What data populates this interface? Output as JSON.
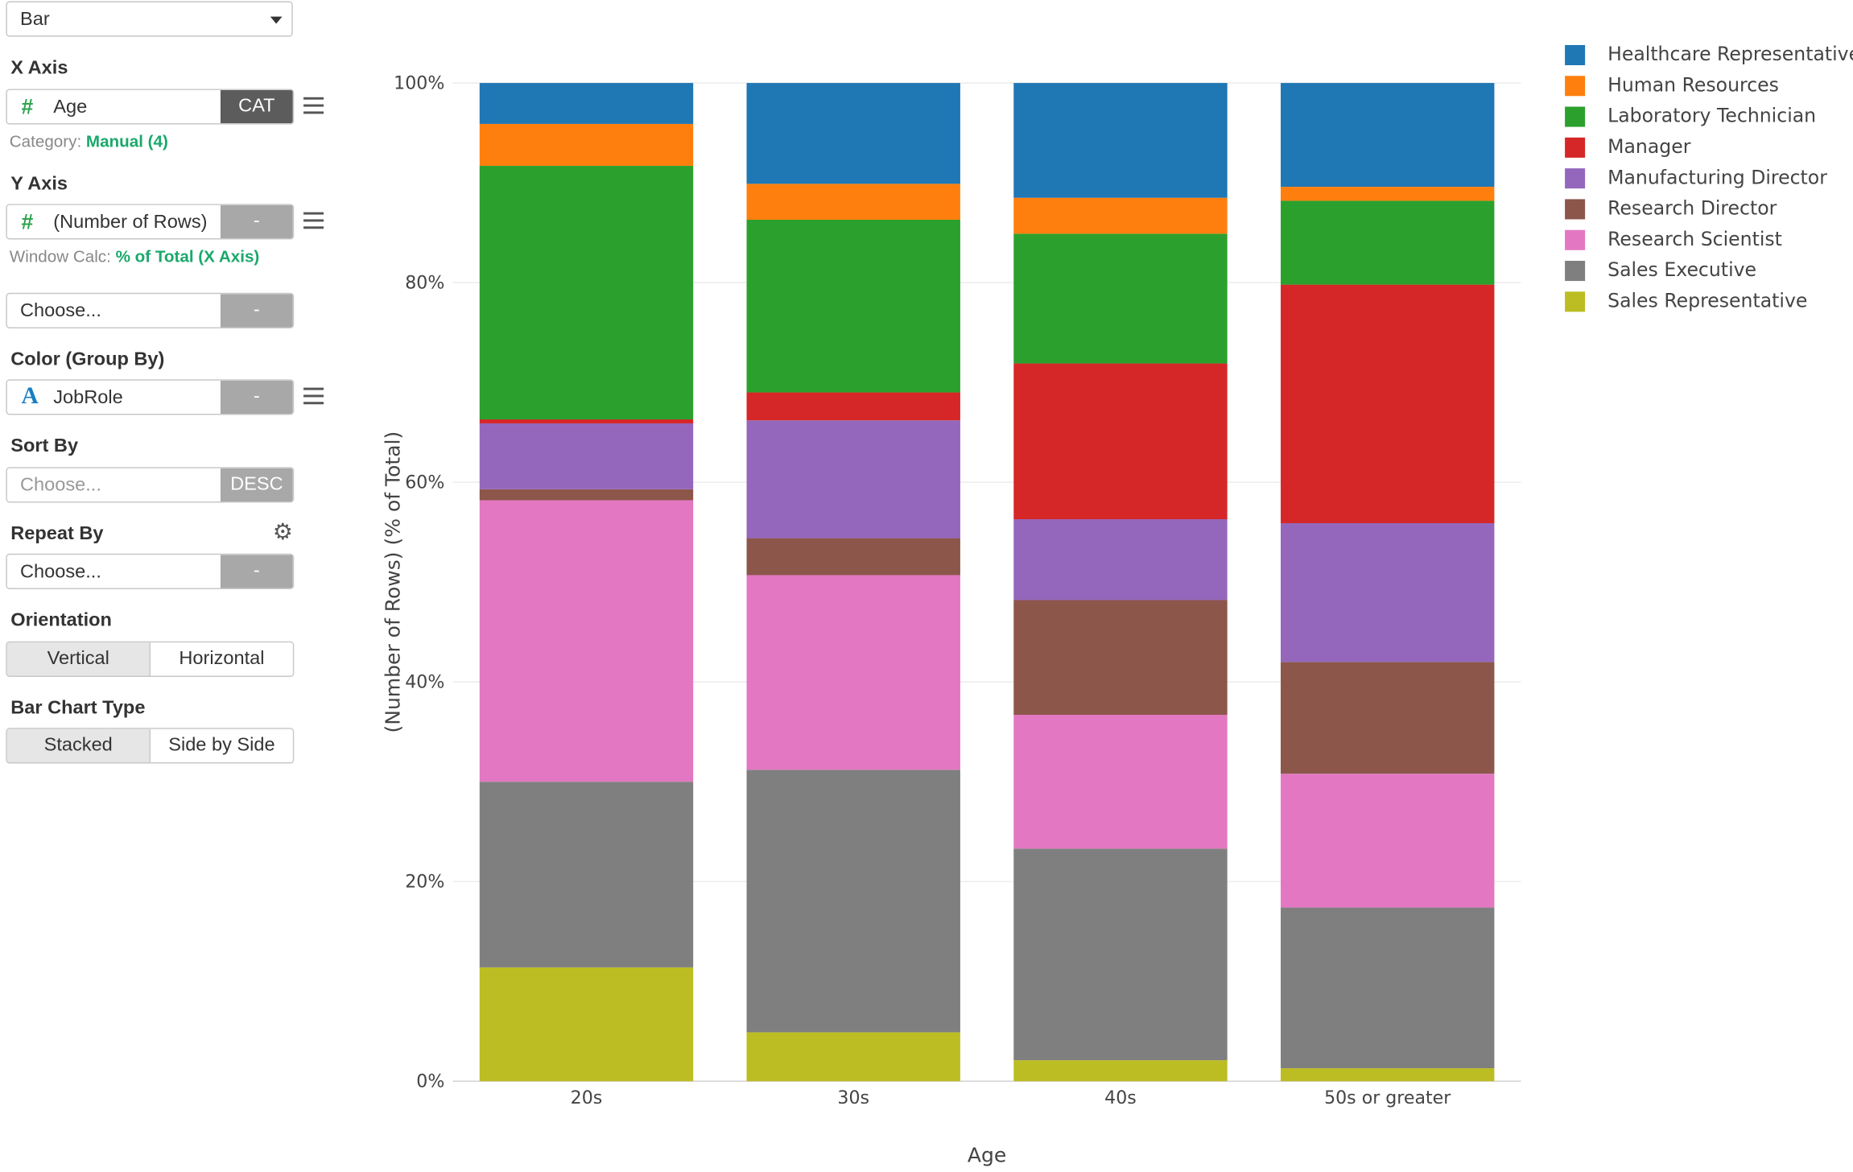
{
  "chart_type_select": {
    "value": "Bar"
  },
  "x_axis": {
    "title": "X Axis",
    "field": "Age",
    "button": "CAT",
    "note_label": "Category:",
    "note_value": "Manual (4)"
  },
  "y_axis": {
    "title": "Y Axis",
    "field": "(Number of Rows)",
    "button": "-",
    "note_label": "Window Calc:",
    "note_value": "% of Total (X Axis)"
  },
  "extra_field": {
    "placeholder": "Choose...",
    "button": "-"
  },
  "color": {
    "title": "Color (Group By)",
    "field": "JobRole",
    "button": "-"
  },
  "sort": {
    "title": "Sort By",
    "placeholder": "Choose...",
    "button": "DESC"
  },
  "repeat": {
    "title": "Repeat By",
    "placeholder": "Choose...",
    "button": "-"
  },
  "orientation": {
    "title": "Orientation",
    "options": [
      "Vertical",
      "Horizontal"
    ],
    "selected": "Vertical"
  },
  "bar_type": {
    "title": "Bar Chart Type",
    "options": [
      "Stacked",
      "Side by Side"
    ],
    "selected": "Stacked"
  },
  "icons": {
    "number_type": "hash-icon",
    "string_type": "letter-a-icon",
    "menu": "hamburger-menu-icon",
    "settings": "gear-icon",
    "dropdown": "caret-down-icon"
  },
  "chart_data": {
    "type": "bar",
    "stacked": true,
    "xlabel": "Age",
    "ylabel": "(Number of Rows) (% of Total)",
    "ylim": [
      0,
      100
    ],
    "yticks": [
      "0%",
      "20%",
      "40%",
      "60%",
      "80%",
      "100%"
    ],
    "grid": true,
    "legend_position": "right",
    "categories": [
      "20s",
      "30s",
      "40s",
      "50s or greater"
    ],
    "series": [
      {
        "name": "Sales Representative",
        "color": "#bcbd22",
        "values": [
          11.4,
          4.9,
          2.1,
          1.3
        ]
      },
      {
        "name": "Sales Executive",
        "color": "#7f7f7f",
        "values": [
          18.6,
          26.3,
          21.2,
          16.1
        ]
      },
      {
        "name": "Research Scientist",
        "color": "#e377c2",
        "values": [
          28.2,
          19.5,
          13.4,
          13.4
        ]
      },
      {
        "name": "Research Director",
        "color": "#8c564b",
        "values": [
          1.1,
          3.7,
          11.5,
          11.2
        ]
      },
      {
        "name": "Manufacturing Director",
        "color": "#9467bd",
        "values": [
          6.6,
          11.8,
          8.1,
          13.9
        ]
      },
      {
        "name": "Manager",
        "color": "#d62728",
        "values": [
          0.4,
          2.8,
          15.6,
          23.9
        ]
      },
      {
        "name": "Laboratory Technician",
        "color": "#2ca02c",
        "values": [
          25.4,
          17.3,
          13.0,
          8.4
        ]
      },
      {
        "name": "Human Resources",
        "color": "#ff7f0e",
        "values": [
          4.2,
          3.6,
          3.6,
          1.4
        ]
      },
      {
        "name": "Healthcare Representative",
        "color": "#1f77b4",
        "values": [
          4.1,
          10.1,
          11.5,
          10.4
        ]
      }
    ],
    "legend_order": [
      "Healthcare Representative",
      "Human Resources",
      "Laboratory Technician",
      "Manager",
      "Manufacturing Director",
      "Research Director",
      "Research Scientist",
      "Sales Executive",
      "Sales Representative"
    ]
  }
}
